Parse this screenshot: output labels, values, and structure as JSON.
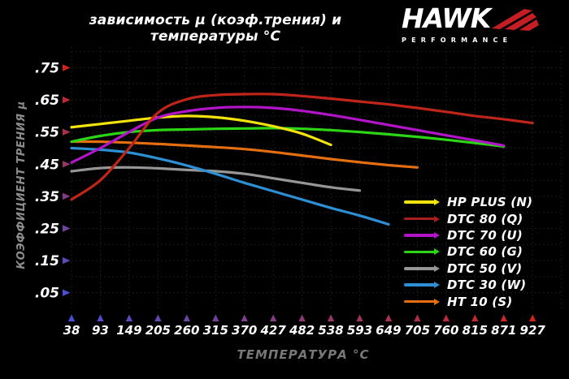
{
  "title": "зависимость μ (коэф.трения) и температуры °C",
  "logo": {
    "brand": "HAWK",
    "subtitle": "PERFORMANCE",
    "accent_color": "#c41e24"
  },
  "x_axis": {
    "label": "ТЕМПЕРАТУРА °C",
    "ticks": [
      38,
      93,
      149,
      205,
      260,
      315,
      370,
      427,
      482,
      538,
      593,
      649,
      705,
      760,
      815,
      871,
      927
    ]
  },
  "y_axis": {
    "label": "КОЭФФИЦИЕНТ ТРЕНИЯ μ",
    "ticks": [
      ".05",
      ".15",
      ".25",
      ".35",
      ".45",
      ".55",
      ".65",
      ".75"
    ]
  },
  "legend": {
    "position": "lower right",
    "items": [
      {
        "label": "HP PLUS (N)",
        "color": "#f2e30c"
      },
      {
        "label": "DTC 80 (Q)",
        "color": "#a81e1c"
      },
      {
        "label": "DTC 70 (U)",
        "color": "#b215c8"
      },
      {
        "label": "DTC 60 (G)",
        "color": "#2cd616"
      },
      {
        "label": "DTC 50 (V)",
        "color": "#969696"
      },
      {
        "label": "DTC 30 (W)",
        "color": "#2d8fd4"
      },
      {
        "label": "HT 10 (S)",
        "color": "#e56f10"
      }
    ]
  },
  "theme": {
    "background": "#000000",
    "grid_color": "#242424",
    "tick_text_color": "#ffffff",
    "cold_color": "#4a4fd4",
    "hot_color": "#d2231a"
  },
  "chart_data": {
    "type": "line",
    "title": "зависимость μ (коэф.трения) и температуры °C",
    "xlabel": "ТЕМПЕРАТУРА °C",
    "ylabel": "КОЭФФИЦИЕНТ ТРЕНИЯ μ",
    "x_ticks": [
      38,
      93,
      149,
      205,
      260,
      315,
      370,
      427,
      482,
      538,
      593,
      649,
      705,
      760,
      815,
      871,
      927
    ],
    "ylim": [
      0,
      0.8
    ],
    "y_tick_values": [
      0.05,
      0.15,
      0.25,
      0.35,
      0.45,
      0.55,
      0.65,
      0.75
    ],
    "grid": true,
    "legend_position": "lower right",
    "series": [
      {
        "name": "HP PLUS (N)",
        "color": "#f2e30c",
        "points": [
          [
            38,
            0.565
          ],
          [
            93,
            0.575
          ],
          [
            149,
            0.585
          ],
          [
            205,
            0.595
          ],
          [
            260,
            0.6
          ],
          [
            315,
            0.596
          ],
          [
            370,
            0.585
          ],
          [
            427,
            0.568
          ],
          [
            482,
            0.545
          ],
          [
            538,
            0.51
          ]
        ]
      },
      {
        "name": "DTC 80 (Q)",
        "color": "#c0251a",
        "points": [
          [
            38,
            0.34
          ],
          [
            93,
            0.4
          ],
          [
            149,
            0.5
          ],
          [
            205,
            0.61
          ],
          [
            260,
            0.652
          ],
          [
            315,
            0.665
          ],
          [
            370,
            0.668
          ],
          [
            427,
            0.668
          ],
          [
            482,
            0.662
          ],
          [
            538,
            0.654
          ],
          [
            593,
            0.645
          ],
          [
            649,
            0.636
          ],
          [
            705,
            0.625
          ],
          [
            760,
            0.613
          ],
          [
            815,
            0.6
          ],
          [
            871,
            0.59
          ],
          [
            927,
            0.578
          ]
        ]
      },
      {
        "name": "DTC 70 (U)",
        "color": "#b215c8",
        "points": [
          [
            38,
            0.455
          ],
          [
            93,
            0.5
          ],
          [
            149,
            0.55
          ],
          [
            205,
            0.595
          ],
          [
            260,
            0.615
          ],
          [
            315,
            0.625
          ],
          [
            370,
            0.628
          ],
          [
            427,
            0.625
          ],
          [
            482,
            0.616
          ],
          [
            538,
            0.603
          ],
          [
            593,
            0.588
          ],
          [
            649,
            0.572
          ],
          [
            705,
            0.556
          ],
          [
            760,
            0.54
          ],
          [
            815,
            0.524
          ],
          [
            871,
            0.508
          ]
        ]
      },
      {
        "name": "DTC 60 (G)",
        "color": "#2cd616",
        "points": [
          [
            38,
            0.52
          ],
          [
            93,
            0.538
          ],
          [
            149,
            0.55
          ],
          [
            205,
            0.556
          ],
          [
            260,
            0.558
          ],
          [
            315,
            0.56
          ],
          [
            370,
            0.561
          ],
          [
            427,
            0.562
          ],
          [
            482,
            0.56
          ],
          [
            538,
            0.556
          ],
          [
            593,
            0.55
          ],
          [
            649,
            0.543
          ],
          [
            705,
            0.535
          ],
          [
            760,
            0.526
          ],
          [
            815,
            0.516
          ],
          [
            871,
            0.505
          ]
        ]
      },
      {
        "name": "DTC 50 (V)",
        "color": "#969696",
        "points": [
          [
            38,
            0.428
          ],
          [
            93,
            0.438
          ],
          [
            149,
            0.44
          ],
          [
            205,
            0.437
          ],
          [
            260,
            0.432
          ],
          [
            315,
            0.428
          ],
          [
            370,
            0.42
          ],
          [
            427,
            0.406
          ],
          [
            482,
            0.392
          ],
          [
            538,
            0.378
          ],
          [
            593,
            0.368
          ]
        ]
      },
      {
        "name": "DTC 30 (W)",
        "color": "#2d8fd4",
        "points": [
          [
            38,
            0.5
          ],
          [
            93,
            0.495
          ],
          [
            149,
            0.486
          ],
          [
            205,
            0.468
          ],
          [
            260,
            0.446
          ],
          [
            315,
            0.42
          ],
          [
            370,
            0.392
          ],
          [
            427,
            0.366
          ],
          [
            482,
            0.34
          ],
          [
            538,
            0.314
          ],
          [
            593,
            0.29
          ],
          [
            649,
            0.263
          ]
        ]
      },
      {
        "name": "HT 10 (S)",
        "color": "#e56f10",
        "points": [
          [
            38,
            0.52
          ],
          [
            93,
            0.52
          ],
          [
            149,
            0.517
          ],
          [
            205,
            0.513
          ],
          [
            260,
            0.508
          ],
          [
            315,
            0.503
          ],
          [
            370,
            0.497
          ],
          [
            427,
            0.488
          ],
          [
            482,
            0.477
          ],
          [
            538,
            0.466
          ],
          [
            593,
            0.456
          ],
          [
            649,
            0.447
          ],
          [
            705,
            0.44
          ]
        ]
      }
    ]
  }
}
